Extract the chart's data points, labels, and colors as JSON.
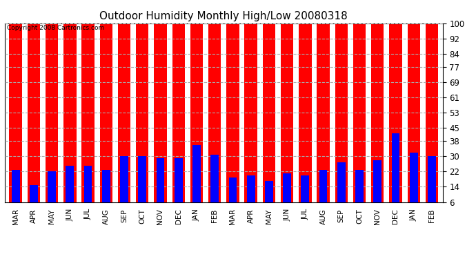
{
  "title": "Outdoor Humidity Monthly High/Low 20080318",
  "copyright": "Copyright 2008 Cartronics.com",
  "categories": [
    "MAR",
    "APR",
    "MAY",
    "JUN",
    "JUL",
    "AUG",
    "SEP",
    "OCT",
    "NOV",
    "DEC",
    "JAN",
    "FEB",
    "MAR",
    "APR",
    "MAY",
    "JUN",
    "JUL",
    "AUG",
    "SEP",
    "OCT",
    "NOV",
    "DEC",
    "JAN",
    "FEB"
  ],
  "high_values": [
    100,
    100,
    100,
    100,
    100,
    100,
    100,
    100,
    100,
    100,
    100,
    100,
    100,
    100,
    100,
    100,
    100,
    100,
    100,
    100,
    100,
    100,
    100,
    100
  ],
  "low_values": [
    23,
    15,
    22,
    25,
    25,
    23,
    30,
    30,
    29,
    29,
    36,
    31,
    19,
    20,
    17,
    21,
    20,
    23,
    27,
    23,
    28,
    42,
    32,
    30
  ],
  "high_color": "#ff0000",
  "low_color": "#0000ff",
  "bg_color": "#ffffff",
  "plot_bg_color": "#ffffff",
  "grid_color": "#aaaaaa",
  "yticks": [
    6,
    14,
    22,
    30,
    38,
    45,
    53,
    61,
    69,
    77,
    84,
    92,
    100
  ],
  "ylim": [
    6,
    100
  ],
  "title_fontsize": 11,
  "high_bar_width": 0.7,
  "low_bar_width": 0.45,
  "xlabel_fontsize": 7.5
}
